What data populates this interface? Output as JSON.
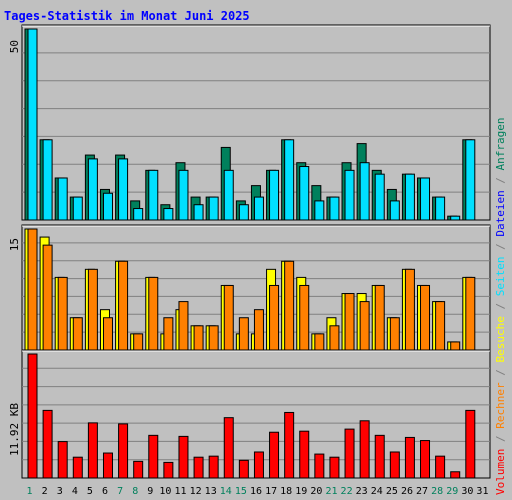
{
  "title": "Tages-Statistik im Monat Juni 2025",
  "colors": {
    "background": "#c0c0c0",
    "title": "#0000ff",
    "grid": "#808080",
    "hits": "#00805c",
    "files": "#00e0ff",
    "visits": "#ffff00",
    "pages": "#ff8000",
    "volume": "#ff0000",
    "weekend_day": "#00805c",
    "weekday": "#000000"
  },
  "chart_data": [
    {
      "type": "bar",
      "name": "requests-files",
      "ymax_label": "50",
      "ylim": [
        0,
        50
      ],
      "grid": true,
      "series": [
        {
          "name": "Anfragen",
          "values": [
            50,
            21,
            11,
            6,
            17,
            8,
            17,
            5,
            13,
            4,
            15,
            6,
            6,
            19,
            5,
            9,
            13,
            21,
            15,
            9,
            6,
            15,
            20,
            13,
            8,
            12,
            11,
            6,
            1,
            21
          ]
        },
        {
          "name": "Dateien",
          "values": [
            50,
            21,
            11,
            6,
            16,
            7,
            16,
            3,
            13,
            3,
            13,
            4,
            6,
            13,
            4,
            6,
            13,
            21,
            14,
            5,
            6,
            13,
            15,
            12,
            5,
            12,
            11,
            6,
            1,
            21
          ]
        }
      ]
    },
    {
      "type": "bar",
      "name": "visits-pages",
      "ymax_label": "15",
      "ylim": [
        0,
        15
      ],
      "grid": true,
      "series": [
        {
          "name": "Besuche",
          "values": [
            15,
            14,
            9,
            4,
            10,
            5,
            11,
            2,
            9,
            2,
            5,
            3,
            3,
            8,
            2,
            2,
            10,
            11,
            9,
            2,
            4,
            7,
            7,
            8,
            4,
            10,
            8,
            6,
            1,
            9
          ]
        },
        {
          "name": "Seiten",
          "values": [
            15,
            13,
            9,
            4,
            10,
            4,
            11,
            2,
            9,
            4,
            6,
            3,
            3,
            8,
            4,
            5,
            8,
            11,
            8,
            2,
            3,
            7,
            6,
            8,
            4,
            10,
            8,
            6,
            1,
            9
          ]
        }
      ]
    },
    {
      "type": "bar",
      "name": "volume",
      "ymax_label": "11.92 KB",
      "ylim": [
        0,
        11.92
      ],
      "grid": true,
      "series": [
        {
          "name": "Volumen",
          "values": [
            11.92,
            6.5,
            3.5,
            2.0,
            5.3,
            2.4,
            5.2,
            1.6,
            4.1,
            1.5,
            4.0,
            2.0,
            2.1,
            5.8,
            1.7,
            2.5,
            4.4,
            6.3,
            4.5,
            2.3,
            2.0,
            4.7,
            5.5,
            4.1,
            2.5,
            3.9,
            3.6,
            2.1,
            0.6,
            6.5
          ]
        }
      ]
    }
  ],
  "x_labels": [
    "1",
    "2",
    "3",
    "4",
    "5",
    "6",
    "7",
    "8",
    "9",
    "10",
    "11",
    "12",
    "13",
    "14",
    "15",
    "16",
    "17",
    "18",
    "19",
    "20",
    "21",
    "22",
    "23",
    "24",
    "25",
    "26",
    "27",
    "28",
    "29",
    "30",
    "31"
  ],
  "weekend_days": [
    1,
    7,
    8,
    14,
    15,
    21,
    22,
    28,
    29
  ],
  "legend": {
    "top": {
      "first": "Anfragen",
      "sep": "/",
      "second": "Dateien"
    },
    "middle": {
      "first": "Seiten",
      "sep": "/",
      "second": "Besuche"
    },
    "bottom": {
      "first": "Rechner",
      "sep": "/",
      "second": "Volumen"
    },
    "top_sep_between": "/",
    "middle_sep_between": "/"
  },
  "legend_colors": {
    "Anfragen": "#00805c",
    "Dateien": "#0000ff",
    "Seiten": "#00e0ff",
    "Besuche": "#ffff00",
    "Rechner": "#ff8000",
    "Volumen": "#ff0000"
  }
}
